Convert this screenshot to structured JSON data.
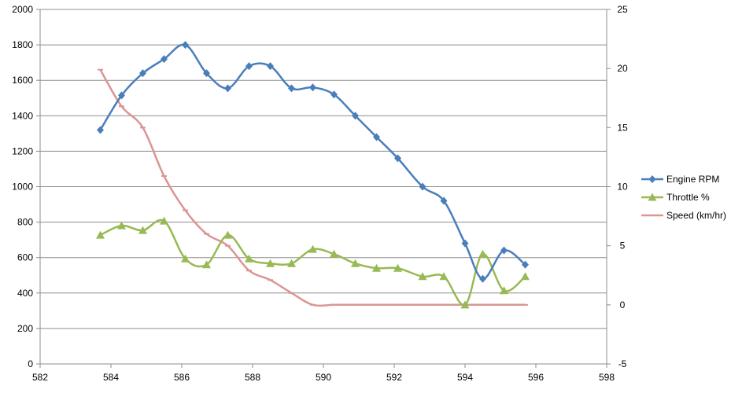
{
  "chart_data": {
    "type": "line",
    "title": "",
    "xlabel": "",
    "ylabel": "",
    "y2label": "",
    "xlim": [
      582,
      598
    ],
    "ylim": [
      0,
      2000
    ],
    "y2lim": [
      -5,
      25
    ],
    "x_ticks": [
      582,
      584,
      586,
      588,
      590,
      592,
      594,
      596,
      598
    ],
    "y_ticks": [
      0,
      200,
      400,
      600,
      800,
      1000,
      1200,
      1400,
      1600,
      1800,
      2000
    ],
    "y2_ticks": [
      -5,
      0,
      5,
      10,
      15,
      20,
      25
    ],
    "grid": "horizontal",
    "legend_position": "right",
    "series": [
      {
        "name": "Engine RPM",
        "axis": "left",
        "color": "#4a7ebb",
        "marker": "diamond",
        "x": [
          583.7,
          584.3,
          584.9,
          585.5,
          586.1,
          586.7,
          587.3,
          587.9,
          588.5,
          589.1,
          589.7,
          590.3,
          590.9,
          591.5,
          592.1,
          592.8,
          593.4,
          594.0,
          594.5,
          595.1,
          595.7
        ],
        "y": [
          1320,
          1515,
          1640,
          1720,
          1800,
          1640,
          1555,
          1680,
          1680,
          1555,
          1560,
          1520,
          1400,
          1280,
          1160,
          1000,
          920,
          680,
          480,
          640,
          560
        ]
      },
      {
        "name": "Throttle %",
        "axis": "right",
        "color": "#98b954",
        "marker": "triangle",
        "x": [
          583.7,
          584.3,
          584.9,
          585.5,
          586.1,
          586.7,
          587.3,
          587.9,
          588.5,
          589.1,
          589.7,
          590.3,
          590.9,
          591.5,
          592.1,
          592.8,
          593.4,
          594.0,
          594.5,
          595.1,
          595.7
        ],
        "y": [
          5.9,
          6.7,
          6.3,
          7.1,
          3.9,
          3.4,
          5.9,
          3.9,
          3.5,
          3.5,
          4.7,
          4.3,
          3.5,
          3.1,
          3.1,
          2.4,
          2.4,
          0.0,
          4.3,
          1.2,
          2.4
        ]
      },
      {
        "name": "Speed (km/hr)",
        "axis": "right",
        "color": "#d99694",
        "marker": "dash",
        "x": [
          583.7,
          584.3,
          584.9,
          585.5,
          586.1,
          586.7,
          587.3,
          587.9,
          588.5,
          589.1,
          589.7,
          590.3,
          590.9,
          591.5,
          592.1,
          592.8,
          593.4,
          594.0,
          594.5,
          595.1,
          595.7
        ],
        "y": [
          19.9,
          16.8,
          15.0,
          10.9,
          8.0,
          6.0,
          5.0,
          2.9,
          2.1,
          1.0,
          0.0,
          0.0,
          0.0,
          0.0,
          0.0,
          0.0,
          0.0,
          0.0,
          0.0,
          0.0,
          0.0
        ]
      }
    ]
  }
}
